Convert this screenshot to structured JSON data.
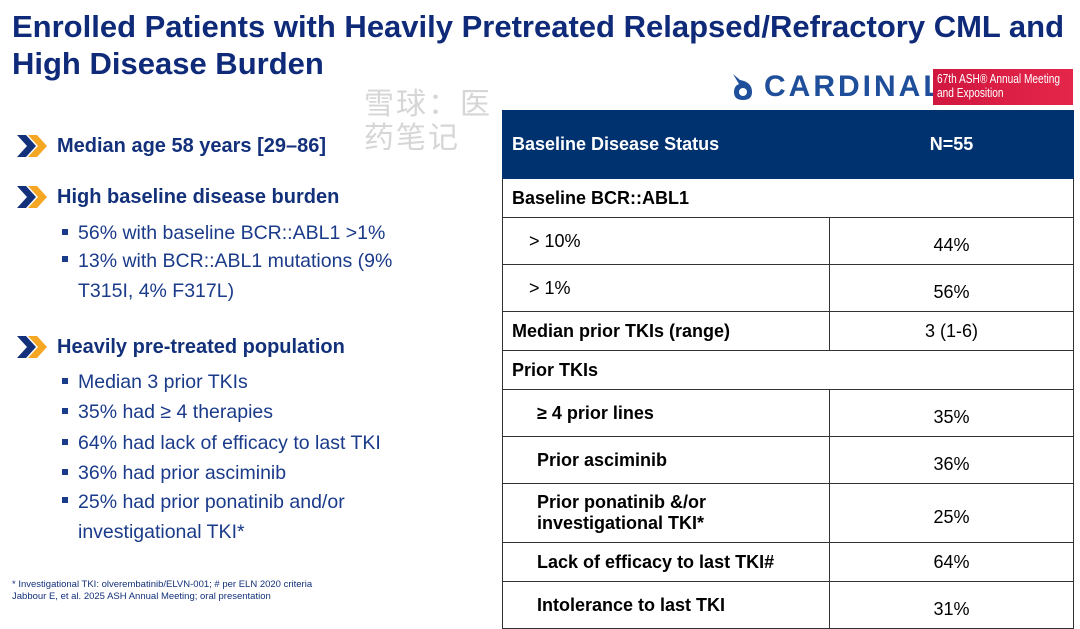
{
  "title": "Enrolled Patients with Heavily Pretreated Relapsed/Refractory CML and High Disease Burden",
  "logo": {
    "name": "CARDINAL",
    "meeting_line1": "67th ASH® Annual Meeting",
    "meeting_line2": "and Exposition"
  },
  "bullets": [
    {
      "heading": "Median age 58 years [29–86]",
      "items": []
    },
    {
      "heading": "High baseline disease burden",
      "items": [
        "56% with baseline BCR::ABL1 >1%",
        "13% with BCR::ABL1 mutations (9% T315I, 4% F317L)"
      ]
    },
    {
      "heading": "Heavily pre-treated population",
      "items": [
        "Median 3 prior TKIs",
        "35% had ≥ 4 therapies",
        "64% had lack of efficacy to last TKI",
        "36% had prior asciminib",
        "25% had prior ponatinib and/or investigational TKI*"
      ]
    }
  ],
  "table": {
    "header": [
      "Baseline Disease Status",
      "N=55"
    ],
    "rows": [
      {
        "label": "Baseline BCR::ABL1",
        "value": ""
      },
      {
        "label": "> 10%",
        "value": "44%"
      },
      {
        "label": "> 1%",
        "value": "56%"
      },
      {
        "label": "Median prior TKIs (range)",
        "value": "3 (1-6)"
      },
      {
        "label": "Prior TKIs",
        "value": ""
      },
      {
        "label": "≥ 4 prior lines",
        "value": "35%"
      },
      {
        "label": "Prior asciminib",
        "value": "36%"
      },
      {
        "label": "Prior ponatinib &/or investigational TKI*",
        "value": "25%"
      },
      {
        "label": "Lack of efficacy to last TKI#",
        "value": "64%"
      },
      {
        "label": "Intolerance to last TKI",
        "value": "31%"
      }
    ]
  },
  "footnotes": [
    "* Investigational TKI: olverembatinib/ELVN-001; # per ELN 2020 criteria",
    "Jabbour E, et al. 2025 ASH Annual Meeting; oral presentation"
  ],
  "watermark": "雪球：医药笔记",
  "colors": {
    "navy": "#00326f",
    "accent": "#f5a623",
    "ash_red": "#d0173f"
  }
}
